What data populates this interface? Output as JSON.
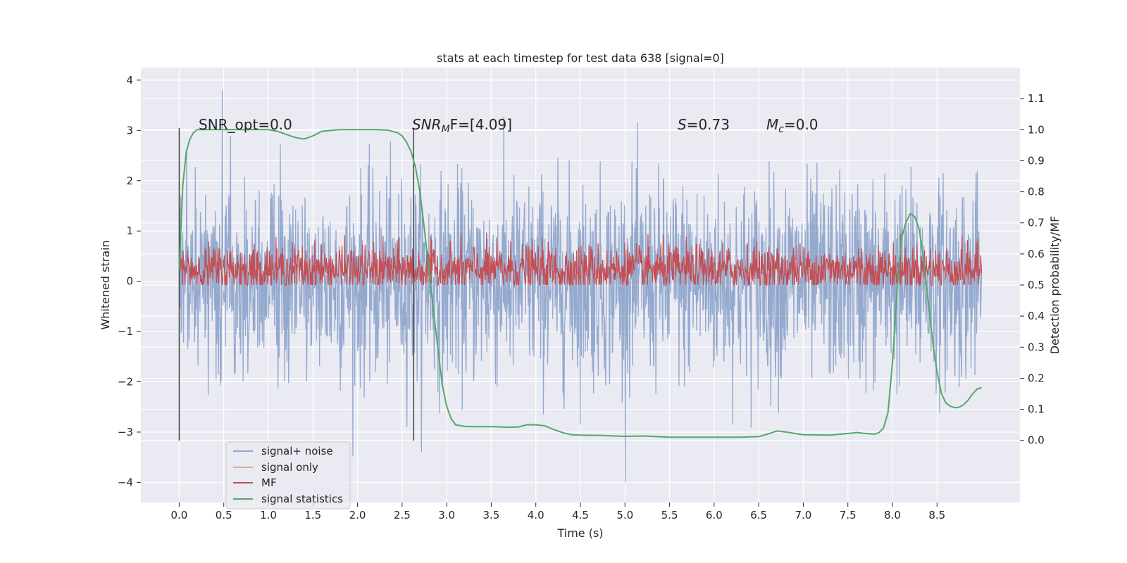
{
  "chart_data": {
    "type": "line",
    "title": "stats at each timestep for test data 638 [signal=0]",
    "xlabel": "Time (s)",
    "ylabel": "Whitened strain",
    "y2label": "Detection probability/MF",
    "xlim": [
      -0.43,
      9.43
    ],
    "ylim": [
      -4.4,
      4.25
    ],
    "y2lim": [
      -0.2,
      1.2
    ],
    "xticks": [
      0.0,
      0.5,
      1.0,
      1.5,
      2.0,
      2.5,
      3.0,
      3.5,
      4.0,
      4.5,
      5.0,
      5.5,
      6.0,
      6.5,
      7.0,
      7.5,
      8.0,
      8.5
    ],
    "xtick_labels": [
      "0.0",
      "0.5",
      "1.0",
      "1.5",
      "2.0",
      "2.5",
      "3.0",
      "3.5",
      "4.0",
      "4.5",
      "5.0",
      "5.5",
      "6.0",
      "6.5",
      "7.0",
      "7.5",
      "8.0",
      "8.5"
    ],
    "yticks": [
      4,
      3,
      2,
      1,
      0,
      -1,
      -2,
      -3,
      -4
    ],
    "ytick_labels": [
      "4",
      "3",
      "2",
      "1",
      "0",
      "−1",
      "−2",
      "−3",
      "−4"
    ],
    "y2ticks": [
      1.1,
      1.0,
      0.9,
      0.8,
      0.7,
      0.6,
      0.5,
      0.4,
      0.3,
      0.2,
      0.1,
      0.0
    ],
    "y2tick_labels": [
      "1.1",
      "1.0",
      "0.9",
      "0.8",
      "0.7",
      "0.6",
      "0.5",
      "0.4",
      "0.3",
      "0.2",
      "0.1",
      "0.0"
    ],
    "annotations": {
      "snr_opt": "SNR_opt=0.0",
      "snr_mf_sym": "SNR",
      "snr_mf_sub": "M",
      "snr_mf_rest": "F=[4.09]",
      "s_sym": "S",
      "s_rest": "=0.73",
      "mc_sym": "M",
      "mc_sub": "c",
      "mc_rest": "=0.0"
    },
    "vlines": [
      0.0,
      2.63
    ],
    "series": [
      {
        "name": "signal+ noise",
        "color": "#4c72b0",
        "axis": "left",
        "x_range": [
          0.0,
          9.0
        ],
        "points": 2048,
        "typical_abs": 1.0,
        "max": 3.9,
        "min": -4.0
      },
      {
        "name": "signal only",
        "color": "#dd8452",
        "axis": "left",
        "values": "zero"
      },
      {
        "name": "MF",
        "color": "#c44e52",
        "axis": "right",
        "x_range": [
          0.0,
          9.0
        ],
        "center": 0.55,
        "typical_spread": 0.04,
        "max": 0.67,
        "min": 0.5
      },
      {
        "name": "signal statistics",
        "color": "#55a868",
        "axis": "right",
        "x": [
          0.0,
          0.04,
          0.08,
          0.12,
          0.16,
          0.2,
          0.3,
          0.5,
          0.8,
          1.0,
          1.1,
          1.2,
          1.3,
          1.4,
          1.5,
          1.6,
          1.8,
          2.0,
          2.2,
          2.35,
          2.45,
          2.5,
          2.55,
          2.6,
          2.65,
          2.7,
          2.75,
          2.8,
          2.85,
          2.9,
          2.95,
          3.0,
          3.05,
          3.1,
          3.2,
          3.3,
          3.5,
          3.7,
          3.8,
          3.9,
          4.0,
          4.1,
          4.2,
          4.3,
          4.4,
          4.5,
          4.7,
          5.0,
          5.2,
          5.5,
          6.0,
          6.3,
          6.5,
          6.6,
          6.7,
          6.8,
          7.0,
          7.3,
          7.5,
          7.6,
          7.7,
          7.8,
          7.85,
          7.9,
          7.95,
          8.0,
          8.05,
          8.1,
          8.15,
          8.2,
          8.25,
          8.3,
          8.35,
          8.4,
          8.45,
          8.5,
          8.55,
          8.6,
          8.65,
          8.7,
          8.75,
          8.8,
          8.85,
          8.9,
          8.95,
          9.0
        ],
        "y": [
          0.55,
          0.82,
          0.93,
          0.97,
          0.99,
          1.0,
          1.0,
          1.0,
          1.0,
          1.0,
          0.995,
          0.985,
          0.975,
          0.97,
          0.98,
          0.995,
          1.0,
          1.0,
          1.0,
          0.998,
          0.99,
          0.98,
          0.96,
          0.93,
          0.88,
          0.8,
          0.68,
          0.55,
          0.42,
          0.3,
          0.18,
          0.11,
          0.07,
          0.05,
          0.045,
          0.044,
          0.044,
          0.042,
          0.043,
          0.05,
          0.05,
          0.047,
          0.035,
          0.025,
          0.018,
          0.017,
          0.016,
          0.013,
          0.014,
          0.01,
          0.01,
          0.01,
          0.012,
          0.02,
          0.03,
          0.027,
          0.018,
          0.017,
          0.022,
          0.025,
          0.022,
          0.02,
          0.025,
          0.04,
          0.09,
          0.25,
          0.48,
          0.65,
          0.7,
          0.73,
          0.72,
          0.68,
          0.58,
          0.45,
          0.32,
          0.22,
          0.15,
          0.12,
          0.11,
          0.105,
          0.107,
          0.115,
          0.13,
          0.15,
          0.165,
          0.17
        ]
      }
    ],
    "legend": {
      "placement": "lower-left",
      "entries": [
        "signal+ noise",
        "signal only",
        "MF",
        "signal statistics"
      ]
    }
  }
}
